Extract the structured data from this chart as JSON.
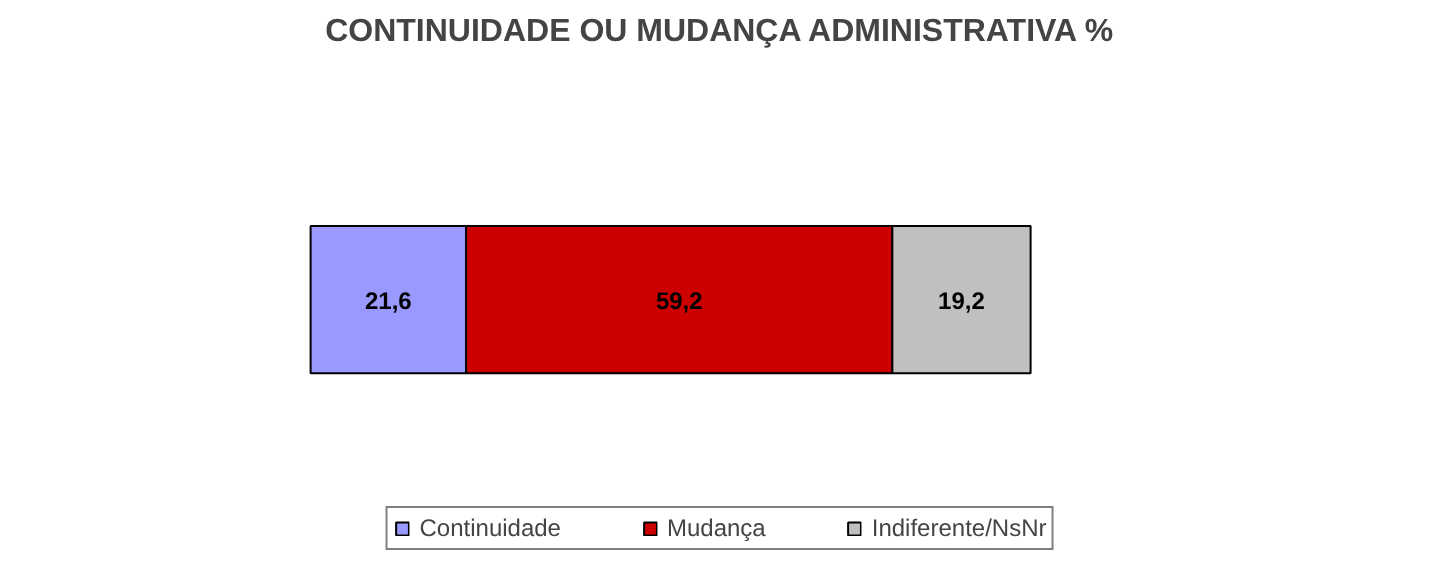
{
  "chart_data": {
    "type": "bar",
    "title": "CONTINUIDADE OU MUDANÇA ADMINISTRATIVA %",
    "orientation": "horizontal",
    "stacked": true,
    "categories": [
      null
    ],
    "tick_labels": false,
    "grid": false,
    "legend": "bottom",
    "series": [
      {
        "name": "Continuidade",
        "color": "#9999ff",
        "values": [
          21.6
        ],
        "value_labels": [
          "21,6"
        ]
      },
      {
        "name": "Mudança",
        "color": "#cc0000",
        "values": [
          59.2
        ],
        "value_labels": [
          "59,2"
        ]
      },
      {
        "name": "Indiferente/NsNr",
        "color": "#c0c0c0",
        "values": [
          19.2
        ],
        "value_labels": [
          "19,2"
        ]
      }
    ]
  }
}
